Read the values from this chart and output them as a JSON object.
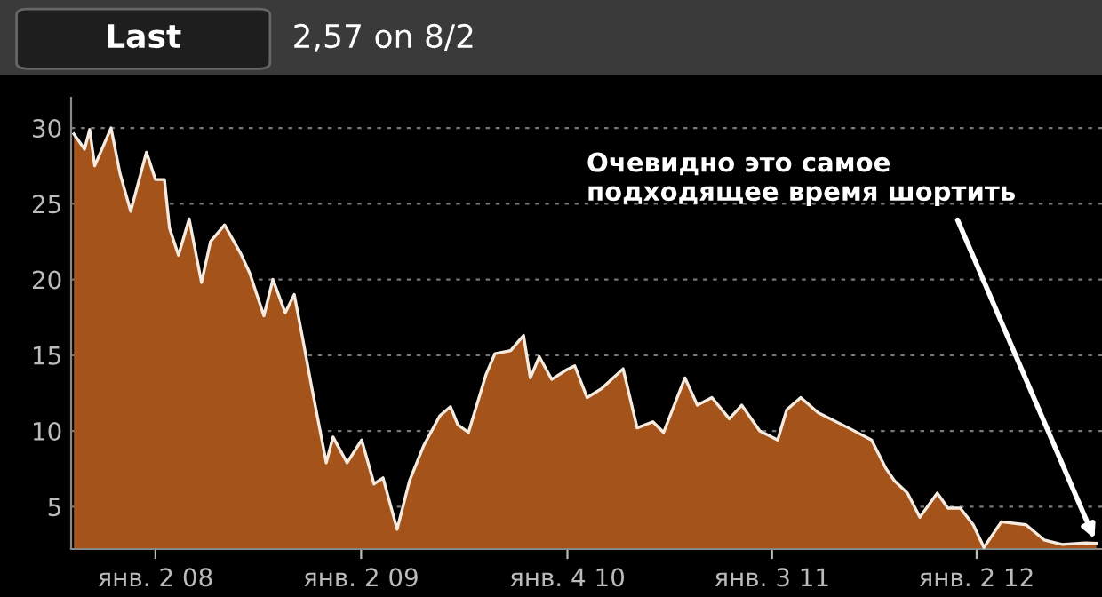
{
  "chart_data": {
    "type": "area",
    "title": "Last",
    "subtitle": "2,57 on 8/2",
    "x": [
      "2007-08-10",
      "2007-08-29",
      "2007-09-07",
      "2007-09-16",
      "2007-10-15",
      "2007-10-31",
      "2007-11-19",
      "2007-12-17",
      "2008-01-02",
      "2008-01-18",
      "2008-01-27",
      "2008-02-12",
      "2008-03-02",
      "2008-03-24",
      "2008-04-09",
      "2008-05-04",
      "2008-06-02",
      "2008-06-18",
      "2008-07-13",
      "2008-07-29",
      "2008-08-20",
      "2008-09-05",
      "2008-09-20",
      "2008-10-06",
      "2008-11-01",
      "2008-11-13",
      "2008-12-08",
      "2009-01-03",
      "2009-01-25",
      "2009-02-10",
      "2009-03-07",
      "2009-03-29",
      "2009-04-23",
      "2009-05-22",
      "2009-06-10",
      "2009-06-23",
      "2009-07-12",
      "2009-08-12",
      "2009-08-28",
      "2009-09-25",
      "2009-10-18",
      "2009-10-30",
      "2009-11-15",
      "2009-12-07",
      "2010-01-01",
      "2010-01-17",
      "2010-02-08",
      "2010-03-06",
      "2010-04-13",
      "2010-05-08",
      "2010-06-05",
      "2010-06-24",
      "2010-08-01",
      "2010-08-23",
      "2010-09-18",
      "2010-10-19",
      "2010-11-10",
      "2010-12-12",
      "2011-01-13",
      "2011-01-29",
      "2011-02-23",
      "2011-03-26",
      "2011-05-19",
      "2011-06-29",
      "2011-07-25",
      "2011-08-09",
      "2011-09-01",
      "2011-09-23",
      "2011-10-24",
      "2011-11-12",
      "2011-12-04",
      "2011-12-27",
      "2012-01-15",
      "2012-02-15",
      "2012-03-30",
      "2012-05-01",
      "2012-06-02",
      "2012-07-13",
      "2012-08-02"
    ],
    "series": [
      {
        "color": "#a4541a",
        "values": [
          29.6,
          28.6,
          29.9,
          27.5,
          30.0,
          27.0,
          24.5,
          28.4,
          26.6,
          26.6,
          23.4,
          21.6,
          24.0,
          19.8,
          22.5,
          23.6,
          21.7,
          20.4,
          17.6,
          20.0,
          17.8,
          19.0,
          16.1,
          12.9,
          7.9,
          9.6,
          7.9,
          9.4,
          6.5,
          6.9,
          3.5,
          6.7,
          9.0,
          11.0,
          11.6,
          10.4,
          9.9,
          13.7,
          15.1,
          15.3,
          16.3,
          13.5,
          14.9,
          13.4,
          14.0,
          14.3,
          12.2,
          12.8,
          14.1,
          10.2,
          10.6,
          9.9,
          13.5,
          11.7,
          12.2,
          10.8,
          11.7,
          10.0,
          9.4,
          11.4,
          12.2,
          11.2,
          10.2,
          9.4,
          7.5,
          6.7,
          5.9,
          4.3,
          5.9,
          4.9,
          4.9,
          3.8,
          2.3,
          4.0,
          3.8,
          2.8,
          2.5,
          2.6,
          2.57
        ]
      }
    ],
    "xlim": [
      "2007-08-05",
      "2012-08-12"
    ],
    "xticks": [
      {
        "value": "2008-01-02",
        "label": "янв. 2 08"
      },
      {
        "value": "2009-01-02",
        "label": "янв. 2 09"
      },
      {
        "value": "2010-01-04",
        "label": "янв. 4 10"
      },
      {
        "value": "2011-01-03",
        "label": "янв. 3 11"
      },
      {
        "value": "2012-01-02",
        "label": "янв. 2 12"
      }
    ],
    "ylim": [
      2.2,
      32
    ],
    "yticks": [
      5,
      10,
      15,
      20,
      25,
      30
    ],
    "grid": "y",
    "annotations": [
      {
        "text": "Очевидно это самое\nподходящее время шортить",
        "x": "2012-08-02",
        "y": 2.57
      }
    ]
  }
}
